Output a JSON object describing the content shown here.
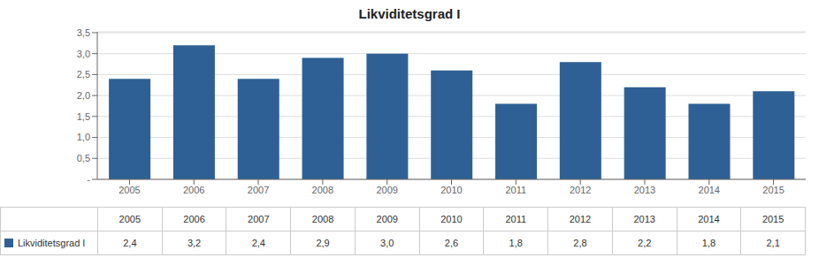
{
  "chart_data": {
    "type": "bar",
    "title": "Likviditetsgrad I",
    "categories": [
      "2005",
      "2006",
      "2007",
      "2008",
      "2009",
      "2010",
      "2011",
      "2012",
      "2013",
      "2014",
      "2015"
    ],
    "series": [
      {
        "name": "Likviditetsgrad I",
        "color": "#2E6095",
        "values": [
          2.4,
          3.2,
          2.4,
          2.9,
          3.0,
          2.6,
          1.8,
          2.8,
          2.2,
          1.8,
          2.1
        ],
        "value_labels": [
          "2,4",
          "3,2",
          "2,4",
          "2,9",
          "3,0",
          "2,6",
          "1,8",
          "2,8",
          "2,2",
          "1,8",
          "2,1"
        ]
      }
    ],
    "ylim": [
      0,
      3.52
    ],
    "yticks": [
      {
        "value": 0,
        "label": "-"
      },
      {
        "value": 0.5,
        "label": "0,5"
      },
      {
        "value": 1.0,
        "label": "1,0"
      },
      {
        "value": 1.5,
        "label": "1,5"
      },
      {
        "value": 2.0,
        "label": "2,0"
      },
      {
        "value": 2.5,
        "label": "2,5"
      },
      {
        "value": 3.0,
        "label": "3,0"
      },
      {
        "value": 3.5,
        "label": "3,5"
      }
    ],
    "grid": true,
    "legend": "bottom",
    "data_labels": true
  }
}
